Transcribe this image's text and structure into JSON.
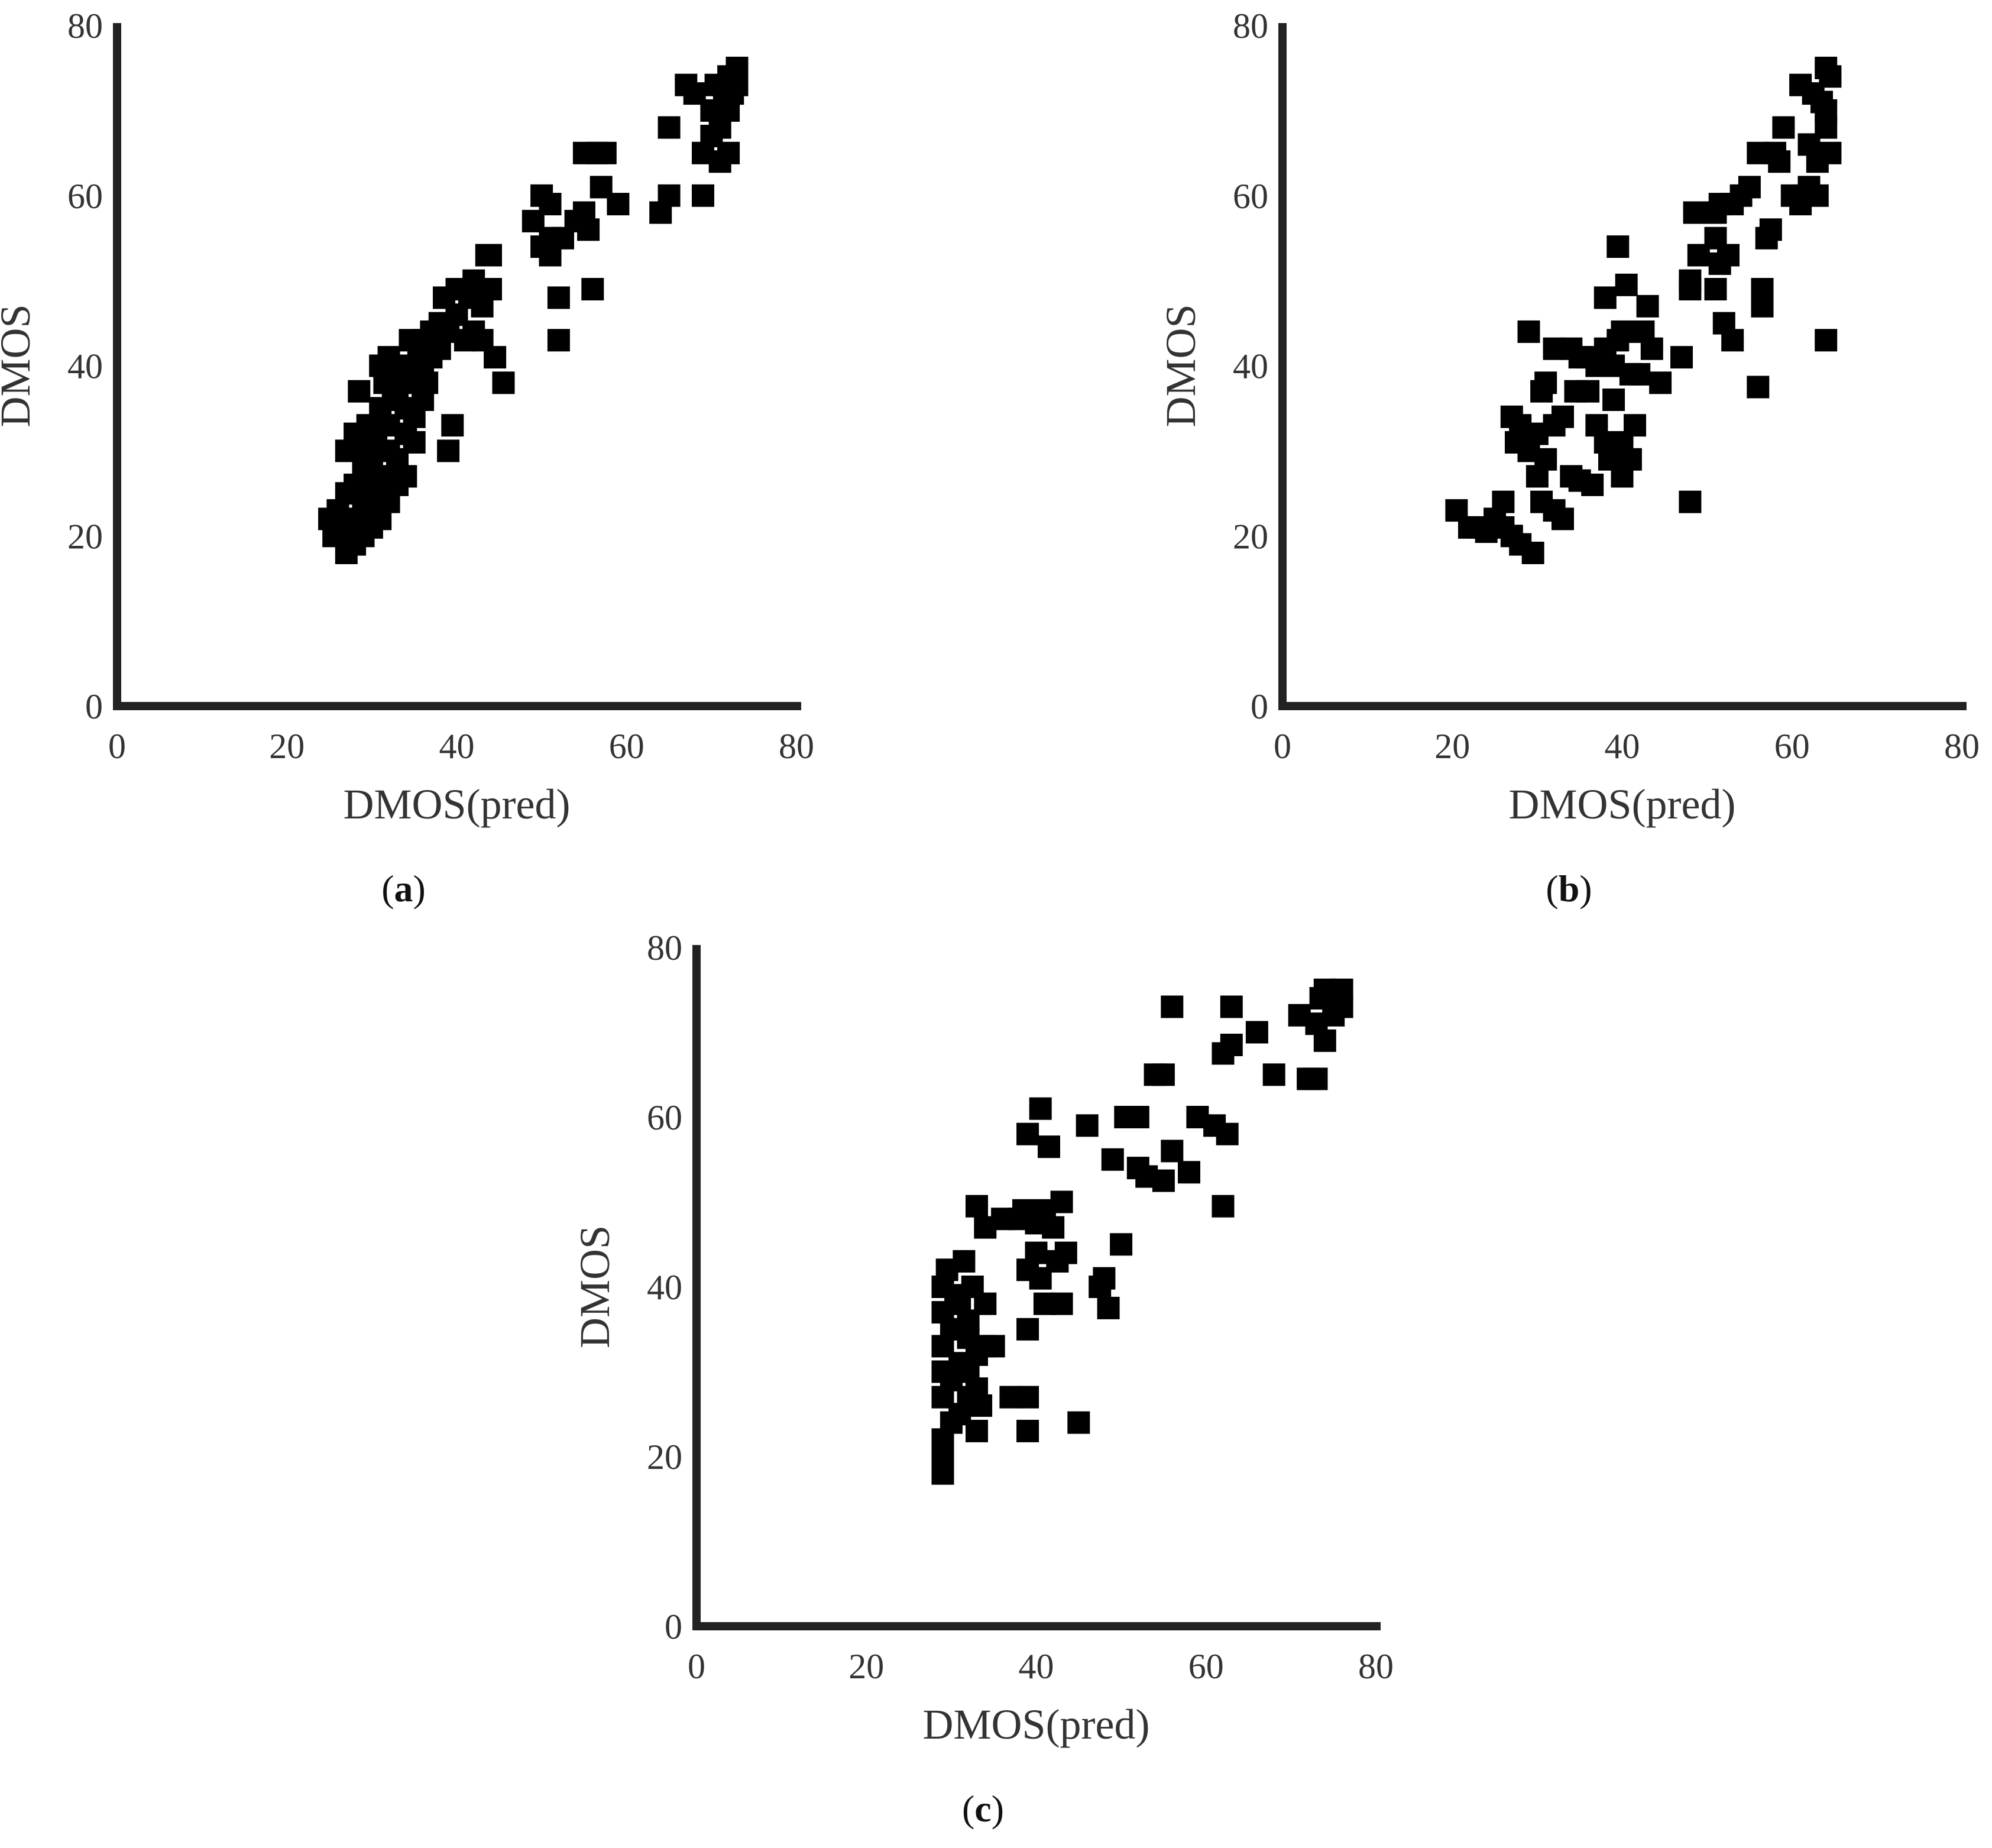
{
  "figure": {
    "panels": [
      "a",
      "b",
      "c"
    ]
  },
  "chart_data": [
    {
      "id": "a",
      "type": "scatter",
      "panel_label": "a",
      "xlabel": "DMOS(pred)",
      "ylabel": "DMOS",
      "xlim": [
        0,
        80
      ],
      "ylim": [
        0,
        80
      ],
      "xticks": [
        "0",
        "20",
        "40",
        "60",
        "80"
      ],
      "yticks": [
        "0",
        "20",
        "40",
        "60",
        "80"
      ],
      "marker": "square",
      "color": "#000000",
      "grid": false,
      "points": [
        [
          25,
          22
        ],
        [
          25.5,
          20
        ],
        [
          26,
          23
        ],
        [
          26.5,
          21
        ],
        [
          27,
          18
        ],
        [
          27,
          20
        ],
        [
          27,
          25
        ],
        [
          27,
          30
        ],
        [
          28,
          19
        ],
        [
          28,
          22
        ],
        [
          28,
          26
        ],
        [
          28,
          32
        ],
        [
          28.5,
          37
        ],
        [
          29,
          20
        ],
        [
          29,
          24
        ],
        [
          29,
          28
        ],
        [
          29,
          30
        ],
        [
          29.5,
          33
        ],
        [
          30,
          21
        ],
        [
          30,
          23
        ],
        [
          30,
          26
        ],
        [
          30,
          29
        ],
        [
          30.5,
          31
        ],
        [
          31,
          22
        ],
        [
          31,
          25
        ],
        [
          31,
          35
        ],
        [
          31,
          40
        ],
        [
          31.5,
          27
        ],
        [
          31.5,
          38
        ],
        [
          32,
          24
        ],
        [
          32,
          30
        ],
        [
          32,
          33
        ],
        [
          32,
          41
        ],
        [
          32.5,
          36
        ],
        [
          33,
          26
        ],
        [
          33,
          29
        ],
        [
          33,
          37
        ],
        [
          33.5,
          40
        ],
        [
          34,
          27
        ],
        [
          34,
          32
        ],
        [
          34,
          35
        ],
        [
          34,
          38
        ],
        [
          34.5,
          43
        ],
        [
          35,
          31
        ],
        [
          35,
          34
        ],
        [
          35,
          39
        ],
        [
          35.5,
          41
        ],
        [
          36,
          36
        ],
        [
          36,
          40
        ],
        [
          36,
          43
        ],
        [
          36.5,
          38
        ],
        [
          37,
          41
        ],
        [
          37,
          44
        ],
        [
          38,
          42
        ],
        [
          38,
          45
        ],
        [
          38.5,
          48
        ],
        [
          39,
          30
        ],
        [
          39,
          44
        ],
        [
          39.5,
          33
        ],
        [
          40,
          46
        ],
        [
          40,
          49
        ],
        [
          41,
          43
        ],
        [
          41.5,
          48
        ],
        [
          42,
          50
        ],
        [
          42,
          44
        ],
        [
          43,
          47
        ],
        [
          43,
          43
        ],
        [
          43.5,
          53
        ],
        [
          44,
          49
        ],
        [
          44,
          53
        ],
        [
          44.5,
          41
        ],
        [
          45.5,
          38
        ],
        [
          49,
          57
        ],
        [
          50,
          54
        ],
        [
          50,
          60
        ],
        [
          51,
          55
        ],
        [
          51,
          59
        ],
        [
          51,
          53
        ],
        [
          52,
          48
        ],
        [
          52,
          43
        ],
        [
          52.5,
          55
        ],
        [
          54,
          57
        ],
        [
          55,
          58
        ],
        [
          55,
          65
        ],
        [
          55.5,
          56
        ],
        [
          56,
          49
        ],
        [
          56.5,
          65
        ],
        [
          57,
          61
        ],
        [
          57.5,
          65
        ],
        [
          59,
          59
        ],
        [
          64,
          58
        ],
        [
          65,
          60
        ],
        [
          65,
          68
        ],
        [
          67,
          73
        ],
        [
          68,
          72
        ],
        [
          69,
          60
        ],
        [
          69,
          65
        ],
        [
          70,
          67
        ],
        [
          70,
          70
        ],
        [
          70.5,
          73
        ],
        [
          71,
          68
        ],
        [
          71,
          64
        ],
        [
          71.5,
          71
        ],
        [
          72,
          65
        ],
        [
          72,
          70
        ],
        [
          72,
          74
        ],
        [
          72.5,
          72
        ],
        [
          73,
          75
        ],
        [
          73,
          73
        ]
      ]
    },
    {
      "id": "b",
      "type": "scatter",
      "panel_label": "b",
      "xlabel": "DMOS(pred)",
      "ylabel": "DMOS",
      "xlim": [
        0,
        80
      ],
      "ylim": [
        0,
        80
      ],
      "xticks": [
        "0",
        "20",
        "40",
        "60",
        "80"
      ],
      "yticks": [
        "0",
        "20",
        "40",
        "60",
        "80"
      ],
      "marker": "square",
      "color": "#000000",
      "grid": false,
      "points": [
        [
          20.5,
          23
        ],
        [
          22,
          21
        ],
        [
          23,
          21
        ],
        [
          24,
          20.5
        ],
        [
          25,
          22
        ],
        [
          26,
          24
        ],
        [
          26,
          21
        ],
        [
          27,
          20
        ],
        [
          27,
          34
        ],
        [
          27.5,
          31
        ],
        [
          28,
          33
        ],
        [
          28,
          19
        ],
        [
          29,
          44
        ],
        [
          29,
          30
        ],
        [
          29.5,
          18
        ],
        [
          30,
          27
        ],
        [
          30,
          32
        ],
        [
          30.5,
          37
        ],
        [
          30.5,
          24
        ],
        [
          31,
          38
        ],
        [
          31,
          29
        ],
        [
          32,
          33
        ],
        [
          32,
          23
        ],
        [
          32,
          42
        ],
        [
          33,
          34
        ],
        [
          33,
          22
        ],
        [
          34,
          27
        ],
        [
          34,
          42
        ],
        [
          34.5,
          37
        ],
        [
          35,
          41
        ],
        [
          35,
          26.5
        ],
        [
          36,
          37
        ],
        [
          36,
          41
        ],
        [
          36.5,
          26
        ],
        [
          37,
          33
        ],
        [
          37,
          40
        ],
        [
          38,
          31
        ],
        [
          38,
          42
        ],
        [
          38,
          48
        ],
        [
          38.5,
          29
        ],
        [
          39,
          40
        ],
        [
          39,
          36
        ],
        [
          39.5,
          54
        ],
        [
          39.5,
          43
        ],
        [
          40,
          27
        ],
        [
          40,
          31
        ],
        [
          40,
          44
        ],
        [
          40.5,
          49.5
        ],
        [
          41,
          39
        ],
        [
          41,
          29
        ],
        [
          41.5,
          33
        ],
        [
          42,
          39
        ],
        [
          42.5,
          44
        ],
        [
          43,
          47
        ],
        [
          43.5,
          42
        ],
        [
          44.5,
          38
        ],
        [
          47,
          41
        ],
        [
          48,
          24
        ],
        [
          48,
          50
        ],
        [
          48,
          49
        ],
        [
          48.5,
          58
        ],
        [
          49,
          53
        ],
        [
          51,
          49
        ],
        [
          51,
          55
        ],
        [
          51,
          58
        ],
        [
          51.5,
          52
        ],
        [
          51.5,
          59
        ],
        [
          52,
          45
        ],
        [
          52.5,
          53
        ],
        [
          53,
          43
        ],
        [
          53,
          59
        ],
        [
          54,
          60
        ],
        [
          55,
          61
        ],
        [
          56,
          37.5
        ],
        [
          56,
          65
        ],
        [
          56.5,
          47
        ],
        [
          56.5,
          49
        ],
        [
          57,
          55
        ],
        [
          57.5,
          56
        ],
        [
          58,
          65
        ],
        [
          58.5,
          64
        ],
        [
          59,
          68
        ],
        [
          60,
          60
        ],
        [
          61,
          73
        ],
        [
          61,
          59
        ],
        [
          62,
          61
        ],
        [
          62,
          66
        ],
        [
          62.5,
          72
        ],
        [
          63,
          64
        ],
        [
          63,
          60
        ],
        [
          63.5,
          71
        ],
        [
          64,
          75
        ],
        [
          64,
          43
        ],
        [
          64,
          68
        ],
        [
          64,
          70
        ],
        [
          64.5,
          74
        ],
        [
          64.5,
          65
        ]
      ]
    },
    {
      "id": "c",
      "type": "scatter",
      "panel_label": "c",
      "xlabel": "DMOS(pred)",
      "ylabel": "DMOS",
      "xlim": [
        0,
        80
      ],
      "ylim": [
        0,
        80
      ],
      "xticks": [
        "0",
        "20",
        "40",
        "60",
        "80"
      ],
      "yticks": [
        "0",
        "20",
        "40",
        "60",
        "80"
      ],
      "marker": "square",
      "color": "#000000",
      "grid": false,
      "points": [
        [
          29,
          18
        ],
        [
          29,
          20
        ],
        [
          29,
          22
        ],
        [
          29,
          27
        ],
        [
          29,
          30
        ],
        [
          29,
          33
        ],
        [
          29,
          37
        ],
        [
          29,
          40
        ],
        [
          29.5,
          42
        ],
        [
          30,
          24
        ],
        [
          30,
          29
        ],
        [
          30,
          35
        ],
        [
          30.5,
          39
        ],
        [
          31,
          25
        ],
        [
          31,
          31
        ],
        [
          31,
          38
        ],
        [
          31.5,
          43
        ],
        [
          32,
          27
        ],
        [
          32,
          30
        ],
        [
          32,
          34
        ],
        [
          32,
          36
        ],
        [
          32.5,
          40
        ],
        [
          33,
          23
        ],
        [
          33,
          28
        ],
        [
          33,
          32
        ],
        [
          33,
          49.5
        ],
        [
          33.5,
          26
        ],
        [
          34,
          33
        ],
        [
          34,
          38
        ],
        [
          34,
          47
        ],
        [
          35,
          33
        ],
        [
          36,
          48
        ],
        [
          37,
          27
        ],
        [
          38,
          48
        ],
        [
          38.5,
          49
        ],
        [
          39,
          23
        ],
        [
          39,
          27
        ],
        [
          39,
          35
        ],
        [
          39,
          42
        ],
        [
          39,
          58
        ],
        [
          40,
          44
        ],
        [
          40,
          47.5
        ],
        [
          40.5,
          41
        ],
        [
          40.5,
          61
        ],
        [
          41,
          38
        ],
        [
          41,
          49
        ],
        [
          41.5,
          56.5
        ],
        [
          42,
          47
        ],
        [
          42.5,
          43
        ],
        [
          43,
          38
        ],
        [
          43,
          50
        ],
        [
          43.5,
          44
        ],
        [
          45,
          24
        ],
        [
          46,
          59
        ],
        [
          47.5,
          40
        ],
        [
          48,
          41
        ],
        [
          48.5,
          37.5
        ],
        [
          49,
          55
        ],
        [
          50,
          45
        ],
        [
          50.5,
          60
        ],
        [
          52,
          54
        ],
        [
          52,
          60
        ],
        [
          53,
          53
        ],
        [
          54,
          65
        ],
        [
          55,
          52.5
        ],
        [
          55,
          65
        ],
        [
          56,
          73
        ],
        [
          56,
          56
        ],
        [
          58,
          53.5
        ],
        [
          59,
          60
        ],
        [
          61,
          59
        ],
        [
          62,
          49.5
        ],
        [
          62,
          67.5
        ],
        [
          62.5,
          58
        ],
        [
          63,
          73
        ],
        [
          63,
          68.5
        ],
        [
          66,
          70
        ],
        [
          68,
          65
        ],
        [
          71,
          72
        ],
        [
          72,
          64.5
        ],
        [
          73,
          71
        ],
        [
          73,
          64.5
        ],
        [
          73.5,
          74
        ],
        [
          74,
          75
        ],
        [
          74,
          69
        ],
        [
          75,
          72
        ],
        [
          76,
          75
        ],
        [
          76,
          73
        ]
      ]
    }
  ]
}
